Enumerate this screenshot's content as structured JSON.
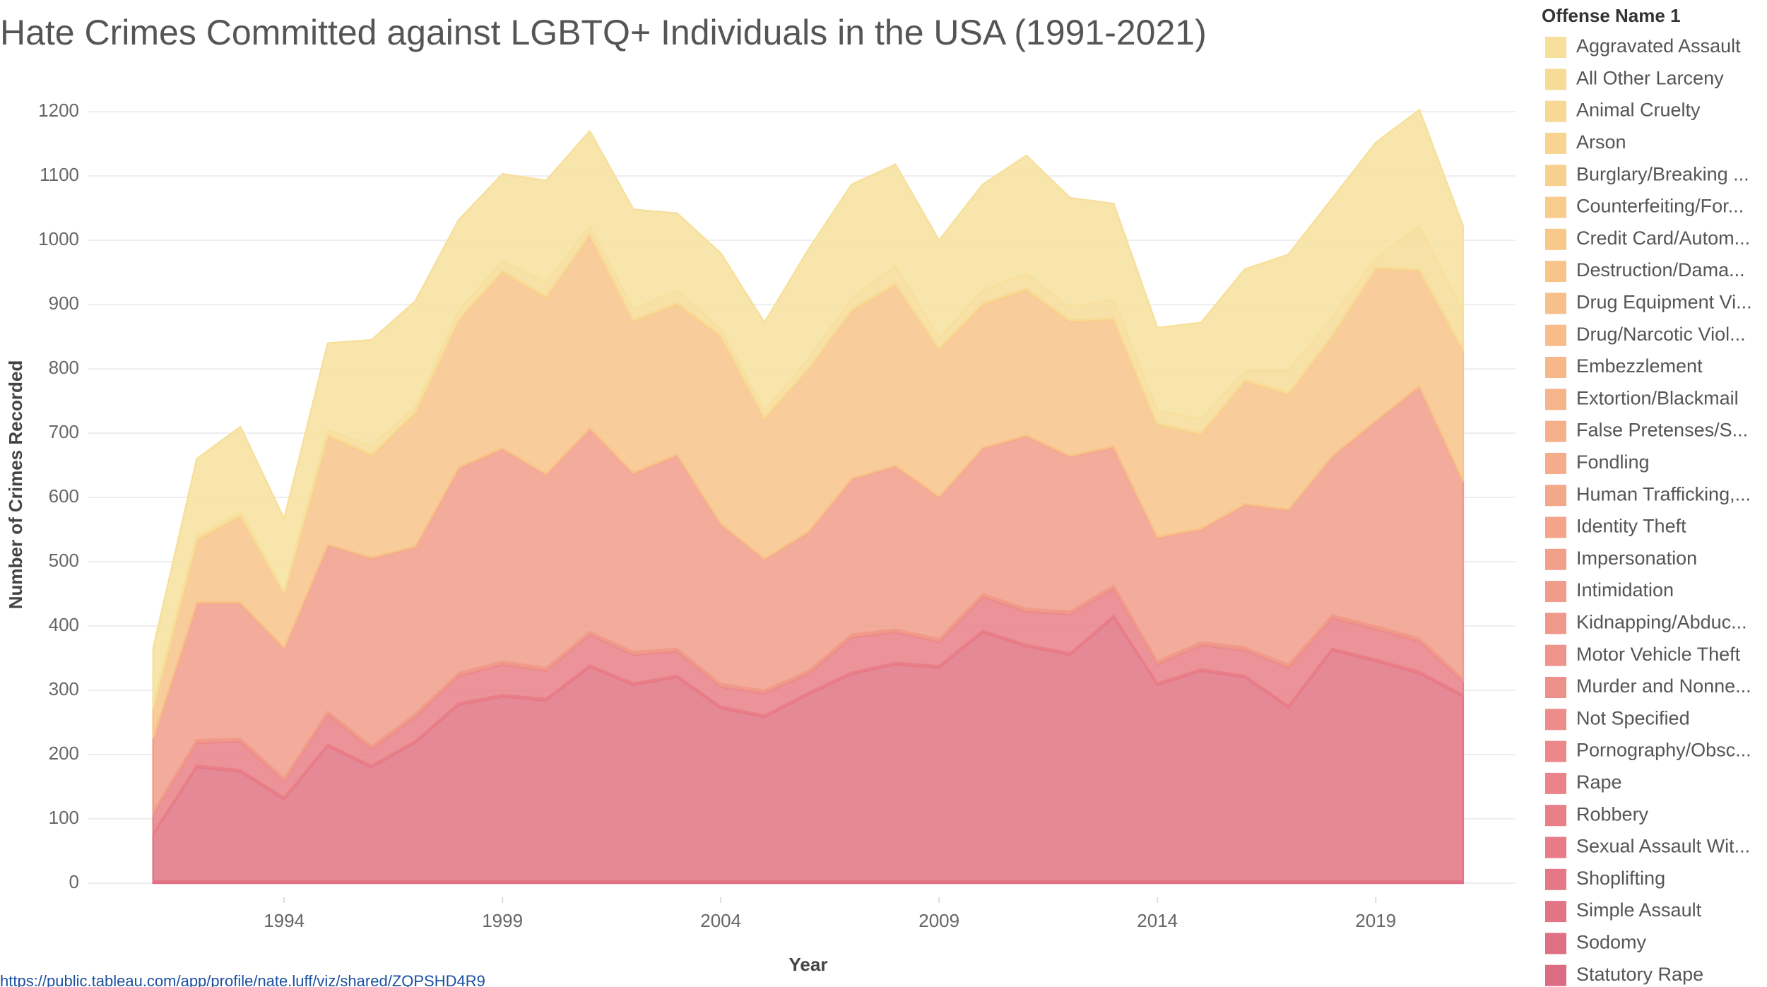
{
  "chart_data": {
    "type": "stacked_area",
    "title": "Hate Crimes Committed against LGBTQ+ Individuals in the USA (1991-2021)",
    "x_label": "Year",
    "y_label": "Number of Crimes Recorded",
    "legend_title": "Offense Name 1",
    "source": "https://public.tableau.com/app/profile/nate.luff/viz/shared/ZQPSHD4R9",
    "x": [
      1991,
      1992,
      1993,
      1994,
      1995,
      1996,
      1997,
      1998,
      1999,
      2000,
      2001,
      2002,
      2003,
      2004,
      2005,
      2006,
      2007,
      2008,
      2009,
      2010,
      2011,
      2012,
      2013,
      2014,
      2015,
      2016,
      2017,
      2018,
      2019,
      2020,
      2021
    ],
    "xlim": [
      1989.5,
      2022.2
    ],
    "xticks": [
      1994,
      1999,
      2004,
      2009,
      2014,
      2019
    ],
    "ylim": [
      -22,
      1265
    ],
    "yticks": [
      0,
      100,
      200,
      300,
      400,
      500,
      600,
      700,
      800,
      900,
      1000,
      1100,
      1200
    ],
    "grid": true,
    "legend": "right",
    "series": [
      {
        "name": "Aggravated Assault",
        "color": "#f7e09c",
        "values": [
          85,
          120,
          132,
          112,
          135,
          165,
          165,
          142,
          135,
          158,
          148,
          155,
          120,
          118,
          137,
          170,
          177,
          158,
          152,
          165,
          184,
          171,
          149,
          129,
          150,
          158,
          181,
          185,
          180,
          181,
          132
        ]
      },
      {
        "name": "All Other Larceny",
        "color": "#f7dc98",
        "values": [
          7,
          4,
          5,
          2,
          7,
          12,
          7,
          12,
          15,
          22,
          11,
          17,
          19,
          9,
          10,
          14,
          17,
          27,
          15,
          19,
          23,
          19,
          29,
          20,
          21,
          14,
          34,
          27,
          14,
          67,
          59
        ]
      },
      {
        "name": "Animal Cruelty",
        "color": "#f7d894",
        "values": [
          0,
          0,
          0,
          0,
          0,
          0,
          0,
          0,
          0,
          0,
          0,
          0,
          0,
          0,
          0,
          0,
          0,
          0,
          0,
          0,
          0,
          0,
          0,
          0,
          0,
          0,
          0,
          0,
          0,
          0,
          0
        ]
      },
      {
        "name": "Arson",
        "color": "#f8d490",
        "values": [
          1,
          1,
          1,
          1,
          1,
          1,
          1,
          1,
          1,
          1,
          1,
          1,
          1,
          1,
          1,
          1,
          1,
          1,
          1,
          1,
          1,
          1,
          1,
          1,
          1,
          1,
          1,
          1,
          1,
          1,
          1
        ]
      },
      {
        "name": "Burglary/Breaking ...",
        "color": "#f8d08e",
        "values": [
          1,
          1,
          1,
          1,
          1,
          1,
          1,
          1,
          1,
          1,
          1,
          1,
          1,
          1,
          1,
          1,
          1,
          1,
          1,
          1,
          1,
          1,
          1,
          1,
          1,
          1,
          1,
          1,
          1,
          1,
          1
        ]
      },
      {
        "name": "Counterfeiting/For...",
        "color": "#f8cc8c",
        "values": [
          1,
          1,
          1,
          1,
          1,
          1,
          1,
          1,
          1,
          1,
          1,
          1,
          1,
          1,
          1,
          1,
          1,
          1,
          1,
          1,
          1,
          1,
          1,
          1,
          1,
          1,
          1,
          1,
          1,
          1,
          1
        ]
      },
      {
        "name": "Credit Card/Autom...",
        "color": "#f8c88a",
        "values": [
          0,
          0,
          0,
          0,
          0,
          0,
          0,
          0,
          0,
          0,
          0,
          0,
          0,
          0,
          0,
          0,
          0,
          0,
          0,
          0,
          0,
          0,
          0,
          0,
          0,
          0,
          0,
          0,
          0,
          0,
          0
        ]
      },
      {
        "name": "Destruction/Dama...",
        "color": "#f8c48a",
        "values": [
          43,
          96,
          133,
          83,
          168,
          158,
          206,
          228,
          273,
          273,
          300,
          234,
          233,
          290,
          217,
          251,
          260,
          280,
          228,
          222,
          225,
          208,
          196,
          173,
          146,
          190,
          178,
          185,
          235,
          178,
          201
        ]
      },
      {
        "name": "Drug Equipment Vi...",
        "color": "#f7c08a",
        "values": [
          0,
          0,
          0,
          0,
          0,
          0,
          0,
          0,
          0,
          0,
          0,
          0,
          0,
          0,
          0,
          0,
          0,
          0,
          0,
          0,
          0,
          0,
          0,
          0,
          0,
          0,
          0,
          0,
          0,
          0,
          0
        ]
      },
      {
        "name": "Drug/Narcotic Viol...",
        "color": "#f7bc8a",
        "values": [
          0,
          0,
          0,
          0,
          0,
          0,
          0,
          0,
          0,
          0,
          0,
          0,
          0,
          0,
          0,
          0,
          0,
          0,
          0,
          0,
          0,
          0,
          0,
          0,
          0,
          0,
          0,
          0,
          0,
          0,
          0
        ]
      },
      {
        "name": "Embezzlement",
        "color": "#f6b88a",
        "values": [
          0,
          0,
          0,
          0,
          0,
          0,
          0,
          0,
          0,
          0,
          0,
          0,
          0,
          0,
          0,
          0,
          0,
          0,
          0,
          0,
          0,
          0,
          0,
          0,
          0,
          0,
          0,
          0,
          0,
          0,
          0
        ]
      },
      {
        "name": "Extortion/Blackmail",
        "color": "#f6b48a",
        "values": [
          0,
          0,
          0,
          0,
          0,
          0,
          0,
          0,
          0,
          0,
          0,
          0,
          0,
          0,
          0,
          0,
          0,
          0,
          0,
          0,
          0,
          0,
          0,
          0,
          0,
          0,
          0,
          0,
          0,
          0,
          0
        ]
      },
      {
        "name": "False Pretenses/S...",
        "color": "#f5b08a",
        "values": [
          0,
          0,
          0,
          0,
          0,
          0,
          0,
          0,
          0,
          0,
          0,
          0,
          0,
          0,
          0,
          0,
          0,
          0,
          0,
          0,
          0,
          0,
          0,
          0,
          0,
          0,
          0,
          0,
          0,
          0,
          0
        ]
      },
      {
        "name": "Fondling",
        "color": "#f5ac8a",
        "values": [
          2,
          2,
          2,
          2,
          2,
          2,
          2,
          2,
          2,
          2,
          2,
          2,
          2,
          2,
          2,
          2,
          2,
          2,
          2,
          2,
          2,
          2,
          2,
          2,
          2,
          2,
          2,
          2,
          2,
          2,
          2
        ]
      },
      {
        "name": "Human Trafficking,...",
        "color": "#f4a88a",
        "values": [
          0,
          0,
          0,
          0,
          0,
          0,
          0,
          0,
          0,
          0,
          0,
          0,
          0,
          0,
          0,
          0,
          0,
          0,
          0,
          0,
          0,
          0,
          0,
          0,
          0,
          0,
          0,
          0,
          0,
          0,
          0
        ]
      },
      {
        "name": "Identity Theft",
        "color": "#f3a48a",
        "values": [
          0,
          0,
          0,
          0,
          0,
          0,
          0,
          0,
          0,
          0,
          0,
          0,
          0,
          0,
          0,
          0,
          0,
          0,
          0,
          0,
          0,
          0,
          0,
          0,
          0,
          0,
          0,
          0,
          0,
          0,
          0
        ]
      },
      {
        "name": "Impersonation",
        "color": "#f2a08a",
        "values": [
          0,
          0,
          0,
          0,
          0,
          0,
          0,
          0,
          0,
          0,
          0,
          0,
          0,
          0,
          0,
          0,
          0,
          0,
          0,
          0,
          0,
          0,
          0,
          0,
          0,
          0,
          0,
          0,
          0,
          0,
          0
        ]
      },
      {
        "name": "Intimidation",
        "color": "#f19c8a",
        "values": [
          115,
          212,
          210,
          202,
          258,
          292,
          259,
          318,
          330,
          300,
          315,
          277,
          300,
          248,
          203,
          215,
          241,
          253,
          220,
          226,
          268,
          240,
          215,
          192,
          175,
          221,
          240,
          246,
          318,
          391,
          307
        ]
      },
      {
        "name": "Kidnapping/Abduc...",
        "color": "#f0988a",
        "values": [
          2,
          2,
          2,
          2,
          2,
          2,
          2,
          2,
          2,
          2,
          2,
          2,
          2,
          2,
          2,
          2,
          2,
          2,
          2,
          2,
          2,
          2,
          2,
          2,
          2,
          2,
          2,
          2,
          2,
          2,
          2
        ]
      },
      {
        "name": "Motor Vehicle Theft",
        "color": "#ef948a",
        "values": [
          1,
          1,
          1,
          1,
          1,
          1,
          1,
          1,
          1,
          1,
          1,
          1,
          1,
          1,
          1,
          1,
          1,
          1,
          1,
          1,
          1,
          1,
          1,
          1,
          1,
          1,
          1,
          1,
          1,
          1,
          1
        ]
      },
      {
        "name": "Murder and Nonne...",
        "color": "#ee908a",
        "values": [
          1,
          1,
          1,
          1,
          1,
          1,
          1,
          1,
          1,
          1,
          1,
          1,
          1,
          1,
          1,
          1,
          1,
          1,
          1,
          1,
          1,
          1,
          1,
          1,
          1,
          1,
          1,
          1,
          1,
          1,
          1
        ]
      },
      {
        "name": "Not Specified",
        "color": "#ed8c8a",
        "values": [
          0,
          0,
          0,
          0,
          0,
          0,
          0,
          0,
          0,
          0,
          0,
          0,
          0,
          0,
          0,
          0,
          0,
          0,
          0,
          0,
          0,
          0,
          0,
          0,
          0,
          0,
          0,
          0,
          0,
          0,
          0
        ]
      },
      {
        "name": "Pornography/Obsc...",
        "color": "#ec8889",
        "values": [
          0,
          0,
          0,
          0,
          0,
          0,
          0,
          0,
          0,
          0,
          0,
          0,
          0,
          0,
          0,
          0,
          0,
          0,
          0,
          0,
          0,
          0,
          0,
          0,
          0,
          0,
          0,
          0,
          0,
          0,
          0
        ]
      },
      {
        "name": "Rape",
        "color": "#eb8489",
        "values": [
          1,
          1,
          1,
          1,
          1,
          1,
          1,
          1,
          1,
          1,
          1,
          1,
          1,
          1,
          1,
          1,
          1,
          1,
          1,
          1,
          1,
          1,
          1,
          1,
          1,
          1,
          1,
          1,
          1,
          1,
          1
        ]
      },
      {
        "name": "Robbery",
        "color": "#e98088",
        "values": [
          27,
          35,
          44,
          25,
          46,
          25,
          37,
          42,
          47,
          43,
          47,
          44,
          37,
          30,
          34,
          29,
          54,
          47,
          37,
          52,
          51,
          60,
          42,
          29,
          37,
          39,
          59,
          47,
          47,
          47,
          20
        ]
      },
      {
        "name": "Sexual Assault Wit...",
        "color": "#e77c87",
        "values": [
          2,
          2,
          2,
          2,
          2,
          2,
          2,
          2,
          2,
          2,
          2,
          2,
          2,
          2,
          2,
          2,
          2,
          2,
          2,
          2,
          2,
          2,
          2,
          2,
          2,
          2,
          2,
          2,
          2,
          2,
          2
        ]
      },
      {
        "name": "Shoplifting",
        "color": "#e57886",
        "values": [
          1,
          1,
          1,
          1,
          1,
          1,
          1,
          1,
          1,
          1,
          1,
          1,
          1,
          1,
          1,
          1,
          1,
          1,
          1,
          1,
          1,
          1,
          1,
          1,
          1,
          1,
          1,
          1,
          1,
          1,
          1
        ]
      },
      {
        "name": "Simple Assault",
        "color": "#e27485",
        "values": [
          72,
          177,
          170,
          127,
          210,
          177,
          215,
          274,
          287,
          281,
          333,
          305,
          317,
          269,
          255,
          290,
          322,
          337,
          332,
          387,
          365,
          352,
          410,
          305,
          327,
          317,
          270,
          359,
          342,
          323,
          287
        ]
      },
      {
        "name": "Sodomy",
        "color": "#df7084",
        "values": [
          2,
          2,
          2,
          2,
          2,
          2,
          2,
          2,
          2,
          2,
          2,
          2,
          2,
          2,
          2,
          2,
          2,
          2,
          2,
          2,
          2,
          2,
          2,
          2,
          2,
          2,
          2,
          2,
          2,
          2,
          2
        ]
      },
      {
        "name": "Statutory Rape",
        "color": "#dc6c83",
        "values": [
          1,
          1,
          1,
          1,
          1,
          1,
          1,
          1,
          1,
          1,
          1,
          1,
          1,
          1,
          1,
          1,
          1,
          1,
          1,
          1,
          1,
          1,
          1,
          1,
          1,
          1,
          1,
          1,
          1,
          1,
          1
        ]
      }
    ]
  }
}
